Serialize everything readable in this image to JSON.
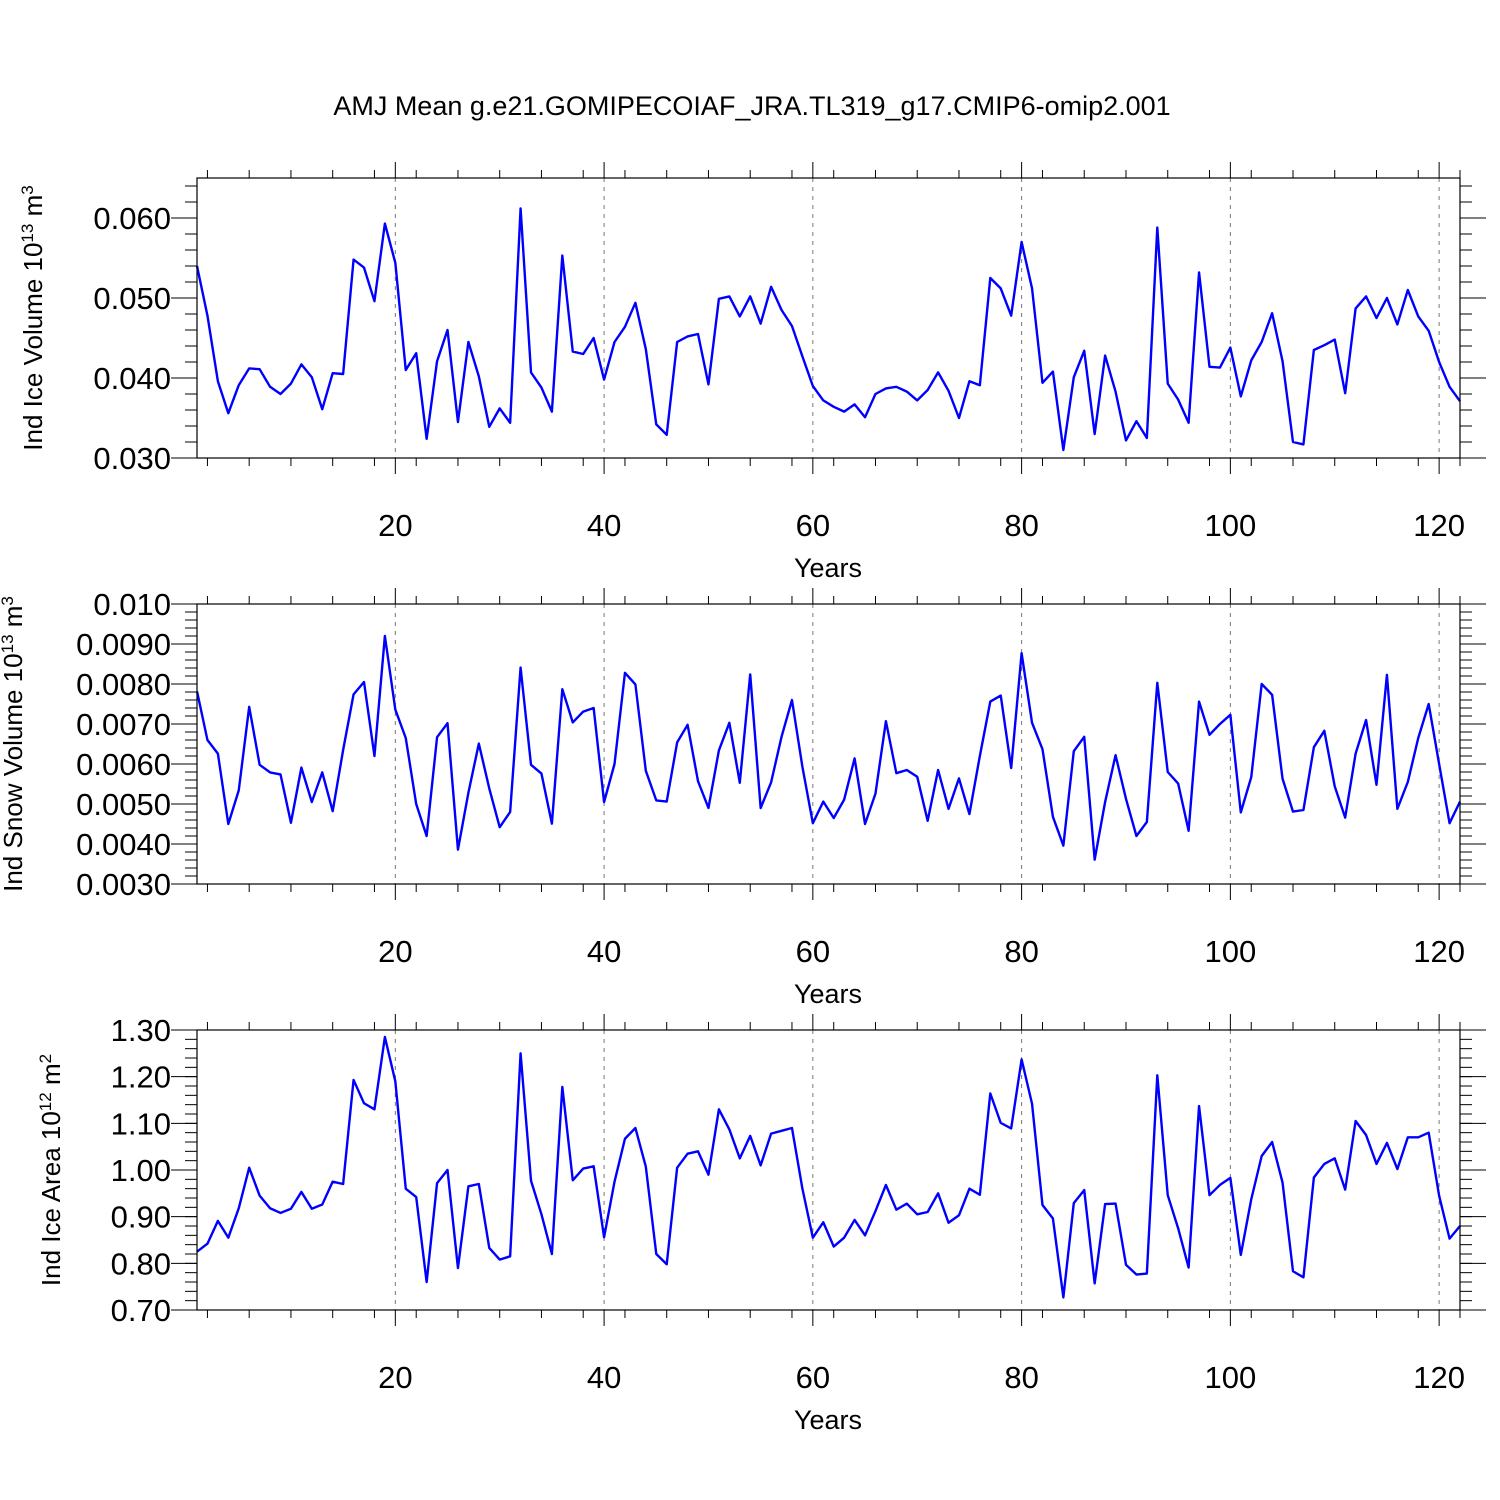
{
  "title": "AMJ Mean g.e21.GOMIPECOIAF_JRA.TL319_g17.CMIP6-omip2.001",
  "chart_data": [
    {
      "type": "line",
      "title": "",
      "xlabel": "Years",
      "ylabel_main": "Ind Ice Volume 10",
      "ylabel_exp": "13",
      "ylabel_unit": " m",
      "ylabel_unit_exp": "3",
      "xlim": [
        1,
        122
      ],
      "ylim": [
        0.03,
        0.065
      ],
      "x_ticks": [
        20,
        40,
        60,
        80,
        100,
        120
      ],
      "x_tick_labels": [
        "20",
        "40",
        "60",
        "80",
        "100",
        "120"
      ],
      "y_ticks": [
        0.03,
        0.04,
        0.05,
        0.06
      ],
      "y_tick_labels": [
        "0.030",
        "0.040",
        "0.050",
        "0.060"
      ],
      "x_start": 1,
      "color": "#0000ff",
      "values": [
        0.054,
        0.0478,
        0.0396,
        0.0356,
        0.0391,
        0.0412,
        0.0411,
        0.0389,
        0.038,
        0.0393,
        0.0417,
        0.0401,
        0.0361,
        0.0406,
        0.0405,
        0.0548,
        0.0538,
        0.0496,
        0.0593,
        0.0544,
        0.041,
        0.0431,
        0.0324,
        0.0421,
        0.046,
        0.0345,
        0.0445,
        0.0402,
        0.0339,
        0.0362,
        0.0344,
        0.0612,
        0.0407,
        0.0388,
        0.0358,
        0.0553,
        0.0433,
        0.043,
        0.045,
        0.0398,
        0.0445,
        0.0464,
        0.0494,
        0.0436,
        0.0342,
        0.0329,
        0.0445,
        0.0452,
        0.0455,
        0.0392,
        0.0499,
        0.0502,
        0.0477,
        0.0502,
        0.0468,
        0.0514,
        0.0485,
        0.0465,
        0.0427,
        0.039,
        0.0372,
        0.0364,
        0.0358,
        0.0367,
        0.0351,
        0.038,
        0.0387,
        0.0389,
        0.0383,
        0.0372,
        0.0385,
        0.0407,
        0.0384,
        0.035,
        0.0396,
        0.0391,
        0.0525,
        0.0512,
        0.0478,
        0.057,
        0.0512,
        0.0394,
        0.0408,
        0.031,
        0.0401,
        0.0434,
        0.033,
        0.0428,
        0.0383,
        0.0322,
        0.0346,
        0.0325,
        0.0588,
        0.0393,
        0.0373,
        0.0344,
        0.0532,
        0.0414,
        0.0413,
        0.0438,
        0.0377,
        0.0422,
        0.0445,
        0.0481,
        0.0421,
        0.032,
        0.0317,
        0.0435,
        0.0441,
        0.0448,
        0.0381,
        0.0487,
        0.0502,
        0.0475,
        0.05,
        0.0467,
        0.051,
        0.0477,
        0.0459,
        0.042,
        0.0389,
        0.0371
      ]
    },
    {
      "type": "line",
      "title": "",
      "xlabel": "Years",
      "ylabel_main": "Ind Snow Volume 10",
      "ylabel_exp": "13",
      "ylabel_unit": " m",
      "ylabel_unit_exp": "3",
      "xlim": [
        1,
        122
      ],
      "ylim": [
        0.003,
        0.01
      ],
      "x_ticks": [
        20,
        40,
        60,
        80,
        100,
        120
      ],
      "x_tick_labels": [
        "20",
        "40",
        "60",
        "80",
        "100",
        "120"
      ],
      "y_ticks": [
        0.003,
        0.004,
        0.005,
        0.006,
        0.007,
        0.008,
        0.009,
        0.01
      ],
      "y_tick_labels": [
        "0.0030",
        "0.0040",
        "0.0050",
        "0.0060",
        "0.0070",
        "0.0080",
        "0.0090",
        "0.010"
      ],
      "x_start": 1,
      "color": "#0000ff",
      "values": [
        0.00782,
        0.0066,
        0.00626,
        0.0045,
        0.00534,
        0.00743,
        0.00598,
        0.00579,
        0.00574,
        0.00453,
        0.00591,
        0.00505,
        0.00579,
        0.00482,
        0.00635,
        0.00774,
        0.00805,
        0.0062,
        0.0092,
        0.00736,
        0.00665,
        0.005,
        0.0042,
        0.00667,
        0.00702,
        0.00386,
        0.00528,
        0.00651,
        0.00539,
        0.00442,
        0.0048,
        0.00841,
        0.00598,
        0.00576,
        0.00451,
        0.00787,
        0.00704,
        0.00731,
        0.0074,
        0.00505,
        0.006,
        0.00828,
        0.00799,
        0.00583,
        0.00509,
        0.00506,
        0.00654,
        0.00698,
        0.00557,
        0.0049,
        0.00634,
        0.00703,
        0.00553,
        0.00824,
        0.0049,
        0.00554,
        0.00668,
        0.0076,
        0.00593,
        0.00452,
        0.00506,
        0.00465,
        0.00511,
        0.00614,
        0.0045,
        0.00526,
        0.00707,
        0.00577,
        0.00585,
        0.00568,
        0.00458,
        0.00585,
        0.00488,
        0.00564,
        0.00475,
        0.0062,
        0.00756,
        0.00771,
        0.0059,
        0.00877,
        0.00703,
        0.00637,
        0.00468,
        0.00396,
        0.00632,
        0.00668,
        0.00361,
        0.00505,
        0.00622,
        0.00513,
        0.0042,
        0.00455,
        0.00803,
        0.0058,
        0.00551,
        0.00433,
        0.00756,
        0.00673,
        0.007,
        0.00723,
        0.00479,
        0.00567,
        0.008,
        0.00773,
        0.00563,
        0.00481,
        0.00485,
        0.00642,
        0.00683,
        0.00544,
        0.00466,
        0.00626,
        0.0071,
        0.00548,
        0.00823,
        0.00488,
        0.00555,
        0.00665,
        0.0075,
        0.006,
        0.00452,
        0.00506
      ]
    },
    {
      "type": "line",
      "title": "",
      "xlabel": "Years",
      "ylabel_main": "Ind Ice Area 10",
      "ylabel_exp": "12",
      "ylabel_unit": " m",
      "ylabel_unit_exp": "2",
      "xlim": [
        1,
        122
      ],
      "ylim": [
        0.7,
        1.3
      ],
      "x_ticks": [
        20,
        40,
        60,
        80,
        100,
        120
      ],
      "x_tick_labels": [
        "20",
        "40",
        "60",
        "80",
        "100",
        "120"
      ],
      "y_ticks": [
        0.7,
        0.8,
        0.9,
        1.0,
        1.1,
        1.2,
        1.3
      ],
      "y_tick_labels": [
        "0.70",
        "0.80",
        "0.90",
        "1.00",
        "1.10",
        "1.20",
        "1.30"
      ],
      "x_start": 1,
      "color": "#0000ff",
      "values": [
        0.825,
        0.842,
        0.891,
        0.855,
        0.918,
        1.005,
        0.945,
        0.918,
        0.908,
        0.917,
        0.953,
        0.917,
        0.926,
        0.975,
        0.97,
        1.193,
        1.143,
        1.13,
        1.285,
        1.19,
        0.96,
        0.942,
        0.76,
        0.972,
        1.0,
        0.79,
        0.965,
        0.97,
        0.833,
        0.808,
        0.815,
        1.25,
        0.977,
        0.905,
        0.82,
        1.178,
        0.978,
        1.003,
        1.008,
        0.856,
        0.975,
        1.067,
        1.09,
        1.007,
        0.82,
        0.798,
        1.005,
        1.035,
        1.04,
        0.99,
        1.13,
        1.087,
        1.025,
        1.073,
        1.01,
        1.078,
        1.084,
        1.09,
        0.96,
        0.855,
        0.888,
        0.836,
        0.855,
        0.893,
        0.86,
        0.912,
        0.968,
        0.915,
        0.928,
        0.905,
        0.91,
        0.95,
        0.887,
        0.903,
        0.96,
        0.947,
        1.164,
        1.101,
        1.089,
        1.237,
        1.142,
        0.925,
        0.896,
        0.727,
        0.929,
        0.957,
        0.757,
        0.927,
        0.928,
        0.797,
        0.776,
        0.778,
        1.203,
        0.946,
        0.875,
        0.791,
        1.137,
        0.946,
        0.968,
        0.983,
        0.818,
        0.937,
        1.03,
        1.06,
        0.973,
        0.783,
        0.77,
        0.984,
        1.013,
        1.025,
        0.958,
        1.105,
        1.075,
        1.013,
        1.058,
        1.002,
        1.07,
        1.07,
        1.08,
        0.945,
        0.853,
        0.88
      ]
    }
  ]
}
